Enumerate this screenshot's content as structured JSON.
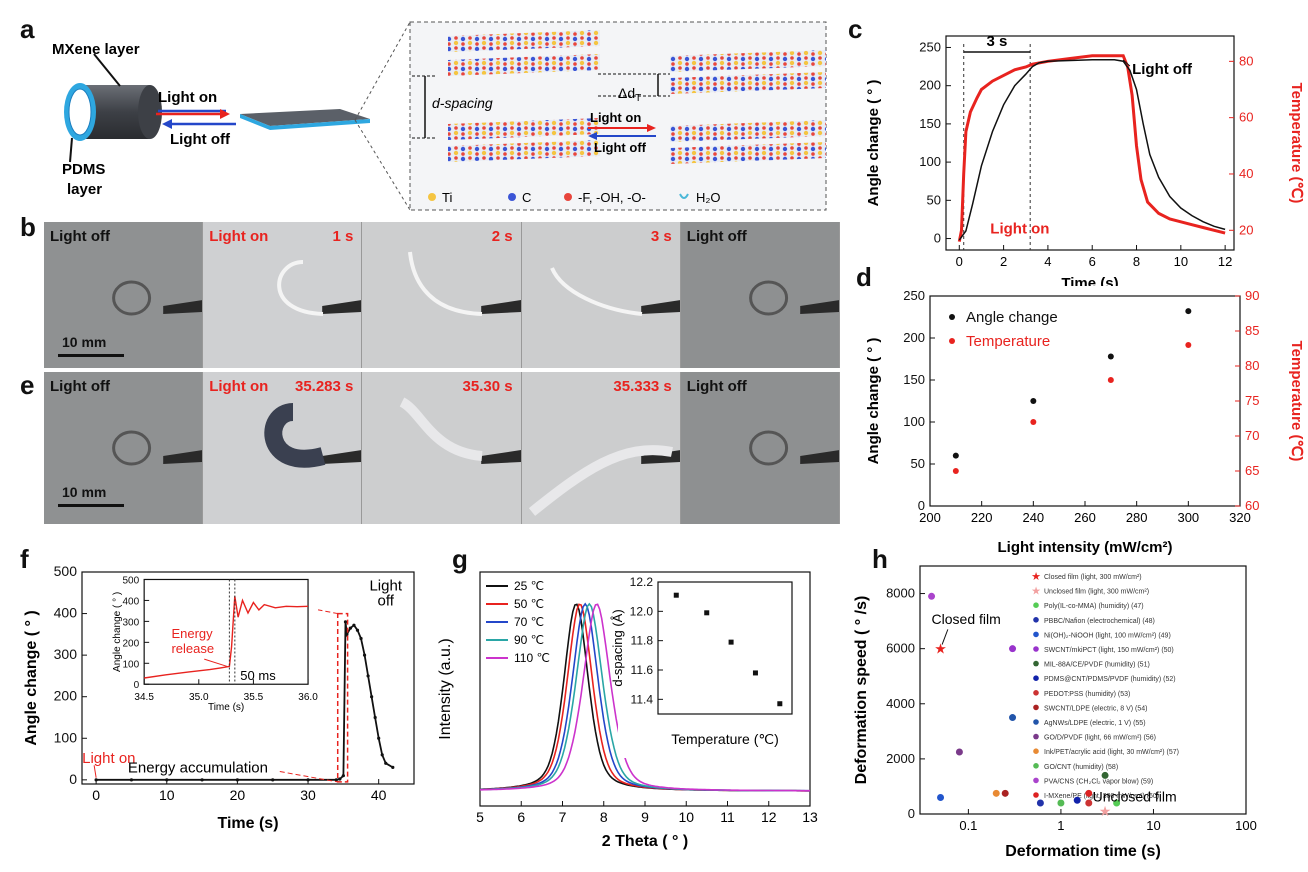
{
  "panel_letters": [
    "a",
    "b",
    "c",
    "d",
    "e",
    "f",
    "g",
    "h"
  ],
  "a": {
    "mxene_layer": "MXene layer",
    "pdms_layer_1": "PDMS",
    "pdms_layer_2": "layer",
    "light_on": "Light on",
    "light_off": "Light off",
    "d_spacing": "d-spacing",
    "delta_d": "Δd",
    "delta_d_sub": "T",
    "inset_light_on": "Light on",
    "inset_light_off": "Light off",
    "legend": [
      "Ti",
      "C",
      "-F, -OH, -O-",
      "H₂O"
    ],
    "colors": {
      "ti": "#f5c542",
      "c": "#3b55d6",
      "f": "#e8453c",
      "h2o": "#4bb8d8"
    }
  },
  "b": {
    "frames": [
      {
        "label": "Light off",
        "time": ""
      },
      {
        "label": "Light on",
        "time": "1 s"
      },
      {
        "label": "",
        "time": "2 s"
      },
      {
        "label": "",
        "time": "3 s"
      },
      {
        "label": "Light off",
        "time": ""
      }
    ],
    "scale": "10 mm"
  },
  "e": {
    "frames": [
      {
        "label": "Light off",
        "time": ""
      },
      {
        "label": "Light on",
        "time": "35.283 s"
      },
      {
        "label": "",
        "time": "35.30 s"
      },
      {
        "label": "",
        "time": "35.333 s"
      },
      {
        "label": "Light off",
        "time": ""
      }
    ],
    "scale": "10 mm"
  },
  "chart_data": [
    {
      "panel": "c",
      "type": "line",
      "xlabel": "Time (s)",
      "ylabel": "Angle change ( ° )",
      "y2label": "Temperature (℃)",
      "xlim": [
        -0.6,
        12.4
      ],
      "ylim": [
        -15,
        265
      ],
      "y2lim": [
        13,
        89
      ],
      "xticks": [
        0,
        2,
        4,
        6,
        8,
        10,
        12
      ],
      "yticks": [
        0,
        50,
        100,
        150,
        200,
        250
      ],
      "y2ticks": [
        20,
        40,
        60,
        80
      ],
      "annotations": [
        "3 s",
        "Light off",
        "Light on"
      ],
      "series": [
        {
          "axis": "y",
          "color": "#111111",
          "x": [
            0,
            0.3,
            0.6,
            1,
            1.5,
            2,
            2.5,
            3,
            3.3,
            3.6,
            4,
            5,
            6,
            7,
            7.4,
            7.7,
            8,
            8.3,
            8.6,
            9,
            9.5,
            10,
            10.5,
            11,
            11.5,
            12
          ],
          "y": [
            -2,
            10,
            45,
            95,
            140,
            175,
            200,
            215,
            225,
            230,
            232,
            233,
            234,
            234,
            232,
            220,
            195,
            150,
            110,
            80,
            55,
            40,
            30,
            22,
            16,
            12
          ]
        },
        {
          "axis": "y2",
          "color": "#e8231f",
          "x": [
            0,
            0.1,
            0.2,
            0.3,
            0.5,
            0.8,
            1,
            1.5,
            2,
            2.5,
            3,
            3.3,
            4,
            5,
            6,
            7,
            7.4,
            7.6,
            7.8,
            8,
            8.2,
            8.5,
            9,
            9.5,
            10,
            10.5,
            11,
            11.5,
            12
          ],
          "y": [
            16,
            20,
            40,
            55,
            62,
            67,
            70,
            73,
            75,
            77,
            78,
            79,
            80,
            81,
            82,
            82,
            82,
            78,
            68,
            50,
            38,
            30,
            26,
            24,
            23,
            22,
            21,
            20,
            19
          ]
        }
      ]
    },
    {
      "panel": "d",
      "type": "scatter",
      "xlabel": "Light intensity (mW/cm²)",
      "ylabel": "Angle change ( ° )",
      "y2label": "Temperature (℃)",
      "xlim": [
        200,
        320
      ],
      "ylim": [
        0,
        250
      ],
      "y2lim": [
        60,
        90
      ],
      "xticks": [
        200,
        220,
        240,
        260,
        280,
        300,
        320
      ],
      "yticks": [
        0,
        50,
        100,
        150,
        200,
        250
      ],
      "y2ticks": [
        60,
        65,
        70,
        75,
        80,
        85,
        90
      ],
      "series": [
        {
          "name": "Angle change",
          "axis": "y",
          "color": "#111111",
          "x": [
            210,
            240,
            270,
            300
          ],
          "y": [
            60,
            125,
            178,
            232
          ]
        },
        {
          "name": "Temperature",
          "axis": "y2",
          "color": "#e8231f",
          "x": [
            210,
            240,
            270,
            300
          ],
          "y": [
            65,
            72,
            78,
            83
          ]
        }
      ]
    },
    {
      "panel": "f",
      "type": "line",
      "xlabel": "Time (s)",
      "ylabel": "Angle change ( ° )",
      "xlim": [
        -2,
        45
      ],
      "ylim": [
        -10,
        500
      ],
      "xticks": [
        0,
        10,
        20,
        30,
        40
      ],
      "yticks": [
        0,
        100,
        200,
        300,
        400,
        500
      ],
      "annotations": [
        "Light on",
        "Energy accumulation",
        "Light",
        "off"
      ],
      "series": [
        {
          "color": "#111111",
          "x": [
            0,
            5,
            10,
            15,
            20,
            25,
            30,
            34,
            34.5,
            35,
            35.3,
            35.5,
            36,
            36.5,
            37,
            37.5,
            38,
            38.5,
            39,
            39.5,
            40,
            40.5,
            41,
            42
          ],
          "y": [
            0,
            0,
            0,
            0,
            0,
            0,
            0,
            0,
            2,
            10,
            380,
            350,
            365,
            372,
            360,
            340,
            300,
            250,
            200,
            150,
            100,
            60,
            40,
            30
          ]
        }
      ],
      "inset": {
        "xlabel": "Time (s)",
        "ylabel": "Angle change ( ° )",
        "xlim": [
          34.5,
          36.0
        ],
        "ylim": [
          0,
          500
        ],
        "xticks": [
          34.5,
          35.0,
          35.5,
          36.0
        ],
        "yticks": [
          0,
          100,
          200,
          300,
          400,
          500
        ],
        "xtick_labels": [
          "34.5",
          "35.0",
          "35.5",
          "36.0"
        ],
        "annotations": [
          "Energy",
          "release",
          "50 ms"
        ],
        "x": [
          34.5,
          34.7,
          34.9,
          35.1,
          35.2,
          35.28,
          35.3,
          35.33,
          35.36,
          35.4,
          35.45,
          35.5,
          35.55,
          35.6,
          35.7,
          35.8,
          35.9,
          36.0
        ],
        "y": [
          30,
          45,
          58,
          70,
          78,
          85,
          180,
          420,
          320,
          400,
          340,
          390,
          355,
          380,
          365,
          372,
          370,
          372
        ]
      }
    },
    {
      "panel": "g",
      "type": "line",
      "xlabel": "2 Theta ( ° )",
      "ylabel": "Intensity (a.u.)",
      "xlim": [
        5,
        13
      ],
      "ylim": [
        0,
        1.1
      ],
      "xticks": [
        5,
        6,
        7,
        8,
        9,
        10,
        11,
        12,
        13
      ],
      "series": [
        {
          "name": "25 ℃",
          "color": "#111111",
          "peak": 7.33
        },
        {
          "name": "50 ℃",
          "color": "#e8231f",
          "peak": 7.42
        },
        {
          "name": "70 ℃",
          "color": "#2447c9",
          "peak": 7.55
        },
        {
          "name": "90 ℃",
          "color": "#2aa6a6",
          "peak": 7.65
        },
        {
          "name": "110 ℃",
          "color": "#cc33cc",
          "peak": 7.83
        }
      ],
      "inset": {
        "type": "scatter",
        "xlabel": "Temperature (℃)",
        "ylabel": "d-spacing (Å)",
        "xlim": [
          10,
          120
        ],
        "ylim": [
          11.3,
          12.2
        ],
        "yticks": [
          11.4,
          11.6,
          11.8,
          12.0,
          12.2
        ],
        "x": [
          25,
          50,
          70,
          90,
          110
        ],
        "y": [
          12.11,
          11.99,
          11.79,
          11.58,
          11.37
        ]
      }
    },
    {
      "panel": "h",
      "type": "scatter",
      "xlabel": "Deformation time (s)",
      "ylabel": "Deformation speed ( ° /s)",
      "xscale": "log",
      "xlim": [
        0.03,
        100
      ],
      "ylim": [
        0,
        9000
      ],
      "xticks": [
        0.1,
        1,
        10,
        100
      ],
      "xtick_labels": [
        "0.1",
        "1",
        "10",
        "100"
      ],
      "yticks": [
        0,
        2000,
        4000,
        6000,
        8000
      ],
      "annotations": [
        "Closed film",
        "Unclosed film"
      ],
      "legend": [
        "Closed film (light, 300 mW/cm²)",
        "Unclosed film (light, 300 mW/cm²)",
        "Poly(IL-co-MMA) (humidity) (47)",
        "PBBC/Nafion (electrochemical) (48)",
        "Ni(OH)₂-NiOOH (light, 100 mW/cm²) (49)",
        "SWCNT/mkiPCT (light, 150 mW/cm²) (50)",
        "MIL-88A/CE/PVDF (humidity) (51)",
        "PDMS@CNT/PDMS/PVDF (humidity) (52)",
        "PEDOT:PSS (humidity) (53)",
        "SWCNT/LDPE (electric, 8 V) (54)",
        "AgNWs/LDPE (electric, 1 V) (55)",
        "GO/D/PVDF (light, 66 mW/cm²) (56)",
        "Ink/PET/acrylic acid (light, 30 mW/cm²) (57)",
        "GO/CNT (humidity) (58)",
        "PVA/CNS (CH₂Cl₂ vapor blow) (59)",
        "I-MXene/PE (light, 300 mW/cm²) (60)"
      ],
      "series": [
        {
          "color": "#e8231f",
          "x": [
            0.05
          ],
          "y": [
            6000
          ]
        },
        {
          "color": "#f2a0a0",
          "x": [
            3
          ],
          "y": [
            100
          ]
        },
        {
          "color": "#55cc55",
          "x": [
            4
          ],
          "y": [
            400
          ]
        },
        {
          "color": "#2233aa",
          "x": [
            0.6
          ],
          "y": [
            400
          ]
        },
        {
          "color": "#2255cc",
          "x": [
            0.05
          ],
          "y": [
            600
          ]
        },
        {
          "color": "#9933cc",
          "x": [
            0.3
          ],
          "y": [
            6000
          ]
        },
        {
          "color": "#336633",
          "x": [
            3
          ],
          "y": [
            1400
          ]
        },
        {
          "color": "#1122aa",
          "x": [
            1.5
          ],
          "y": [
            500
          ]
        },
        {
          "color": "#cc3333",
          "x": [
            2
          ],
          "y": [
            400
          ]
        },
        {
          "color": "#aa2222",
          "x": [
            0.25
          ],
          "y": [
            750
          ]
        },
        {
          "color": "#2255aa",
          "x": [
            0.3
          ],
          "y": [
            3500
          ]
        },
        {
          "color": "#7a3a8a",
          "x": [
            0.08
          ],
          "y": [
            2250
          ]
        },
        {
          "color": "#e88a33",
          "x": [
            0.2
          ],
          "y": [
            750
          ]
        },
        {
          "color": "#55bb55",
          "x": [
            1
          ],
          "y": [
            400
          ]
        },
        {
          "color": "#aa44cc",
          "x": [
            0.04
          ],
          "y": [
            7900
          ]
        },
        {
          "color": "#dd2222",
          "x": [
            2
          ],
          "y": [
            750
          ]
        }
      ]
    }
  ]
}
